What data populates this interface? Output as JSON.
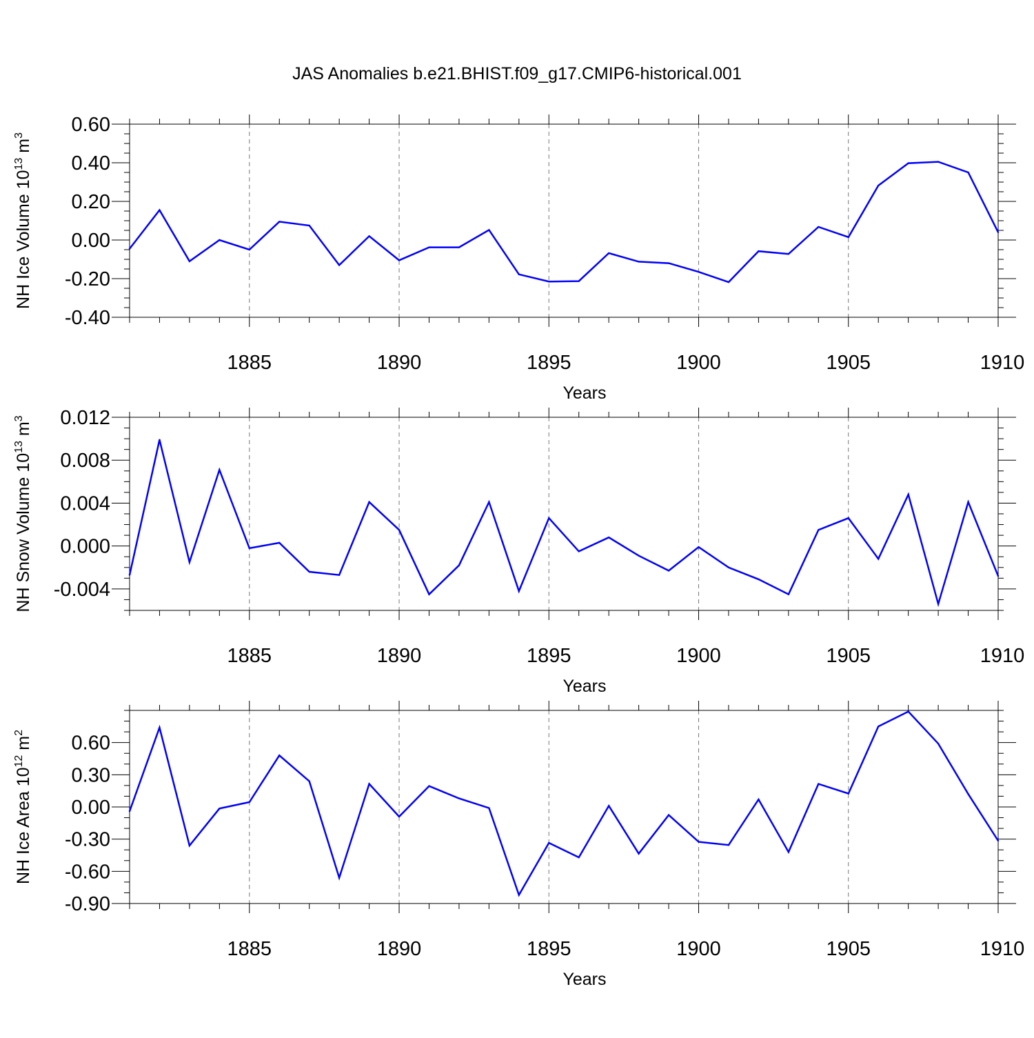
{
  "figure_title": "JAS Anomalies b.e21.BHIST.f09_g17.CMIP6-historical.001",
  "series_color": "#0000ff",
  "chart_data": [
    {
      "type": "line",
      "name": "ice-volume",
      "title": "JAS Anomalies b.e21.BHIST.f09_g17.CMIP6-historical.001",
      "xlabel": "Years",
      "ylabel": {
        "prefix": "NH Ice Volume 10",
        "exp": "13",
        "unit": " m",
        "unit_exp": "3"
      },
      "xlim": [
        1881,
        1910
      ],
      "ylim": [
        -0.4,
        0.6
      ],
      "yticks": [
        -0.4,
        -0.2,
        0.0,
        0.2,
        0.4,
        0.6
      ],
      "ytick_labels": [
        "-0.40",
        "-0.20",
        "0.00",
        "0.20",
        "0.40",
        "0.60"
      ],
      "yminor_step": 0.05,
      "xticks": [
        1885,
        1890,
        1895,
        1900,
        1905,
        1910
      ],
      "xtick_labels": [
        "1885",
        "1890",
        "1895",
        "1900",
        "1905",
        "1910"
      ],
      "grid": "vertical dashed at major x ticks",
      "x": [
        1881,
        1882,
        1883,
        1884,
        1885,
        1886,
        1887,
        1888,
        1889,
        1890,
        1891,
        1892,
        1893,
        1894,
        1895,
        1896,
        1897,
        1898,
        1899,
        1900,
        1901,
        1902,
        1903,
        1904,
        1905,
        1906,
        1907,
        1908,
        1909,
        1910
      ],
      "values": [
        -0.045,
        0.155,
        -0.11,
        0.0,
        -0.05,
        0.095,
        0.075,
        -0.13,
        0.02,
        -0.105,
        -0.038,
        -0.038,
        0.052,
        -0.178,
        -0.215,
        -0.213,
        -0.068,
        -0.112,
        -0.12,
        -0.165,
        -0.218,
        -0.058,
        -0.072,
        0.068,
        0.015,
        0.282,
        0.398,
        0.405,
        0.35,
        0.04
      ]
    },
    {
      "type": "line",
      "name": "snow-volume",
      "xlabel": "Years",
      "ylabel": {
        "prefix": "NH Snow Volume 10",
        "exp": "13",
        "unit": " m",
        "unit_exp": "3"
      },
      "xlim": [
        1881,
        1910
      ],
      "ylim": [
        -0.006,
        0.012
      ],
      "yticks": [
        -0.004,
        0.0,
        0.004,
        0.008,
        0.012
      ],
      "ytick_labels": [
        "-0.004",
        "0.000",
        "0.004",
        "0.008",
        "0.012"
      ],
      "yminor_step": 0.001,
      "xticks": [
        1885,
        1890,
        1895,
        1900,
        1905,
        1910
      ],
      "xtick_labels": [
        "1885",
        "1890",
        "1895",
        "1900",
        "1905",
        "1910"
      ],
      "grid": "vertical dashed at major x ticks",
      "x": [
        1881,
        1882,
        1883,
        1884,
        1885,
        1886,
        1887,
        1888,
        1889,
        1890,
        1891,
        1892,
        1893,
        1894,
        1895,
        1896,
        1897,
        1898,
        1899,
        1900,
        1901,
        1902,
        1903,
        1904,
        1905,
        1906,
        1907,
        1908,
        1909,
        1910
      ],
      "values": [
        -0.0027,
        0.0099,
        -0.0015,
        0.0071,
        -0.0002,
        0.0003,
        -0.0024,
        -0.0027,
        0.0041,
        0.0015,
        -0.0045,
        -0.0018,
        0.0041,
        -0.0042,
        0.0026,
        -0.0005,
        0.0008,
        -0.0009,
        -0.0023,
        -0.0001,
        -0.002,
        -0.0031,
        -0.0045,
        0.0015,
        0.0026,
        -0.0012,
        0.0048,
        -0.0054,
        0.0041,
        -0.0028
      ]
    },
    {
      "type": "line",
      "name": "ice-area",
      "xlabel": "Years",
      "ylabel": {
        "prefix": "NH Ice Area 10",
        "exp": "12",
        "unit": " m",
        "unit_exp": "2"
      },
      "xlim": [
        1881,
        1910
      ],
      "ylim": [
        -0.9,
        0.9
      ],
      "yticks": [
        -0.9,
        -0.6,
        -0.3,
        0.0,
        0.3,
        0.6
      ],
      "ytick_labels": [
        "-0.90",
        "-0.60",
        "-0.30",
        "0.00",
        "0.30",
        "0.60"
      ],
      "yminor_step": 0.1,
      "xticks": [
        1885,
        1890,
        1895,
        1900,
        1905,
        1910
      ],
      "xtick_labels": [
        "1885",
        "1890",
        "1895",
        "1900",
        "1905",
        "1910"
      ],
      "grid": "vertical dashed at major x ticks",
      "x": [
        1881,
        1882,
        1883,
        1884,
        1885,
        1886,
        1887,
        1888,
        1889,
        1890,
        1891,
        1892,
        1893,
        1894,
        1895,
        1896,
        1897,
        1898,
        1899,
        1900,
        1901,
        1902,
        1903,
        1904,
        1905,
        1906,
        1907,
        1908,
        1909,
        1910
      ],
      "values": [
        -0.04,
        0.74,
        -0.36,
        -0.015,
        0.045,
        0.48,
        0.24,
        -0.66,
        0.215,
        -0.09,
        0.195,
        0.08,
        -0.01,
        -0.82,
        -0.335,
        -0.47,
        0.01,
        -0.435,
        -0.075,
        -0.325,
        -0.355,
        0.07,
        -0.42,
        0.215,
        0.125,
        0.75,
        0.89,
        0.59,
        0.12,
        -0.315
      ]
    }
  ]
}
